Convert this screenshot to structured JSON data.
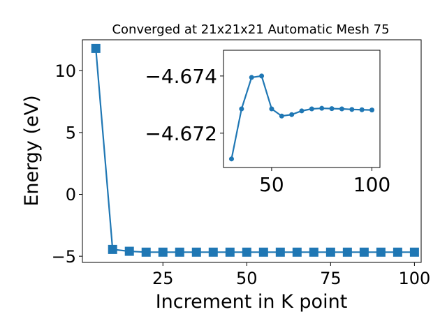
{
  "chart_data": [
    {
      "type": "line",
      "title": "Converged at 21x21x21 Automatic Mesh 75",
      "xlabel": "Increment in K point",
      "ylabel": "Energy (eV)",
      "xlim": [
        1,
        102
      ],
      "ylim": [
        -5.5,
        12.5
      ],
      "xticks": [
        25,
        50,
        75,
        100
      ],
      "yticks": [
        -5,
        0,
        5,
        10
      ],
      "grid": false,
      "marker": "square",
      "color": "#1f77b4",
      "series": [
        {
          "x": [
            5,
            10,
            15,
            20,
            25,
            30,
            35,
            40,
            45,
            50,
            55,
            60,
            65,
            70,
            75,
            80,
            85,
            90,
            95,
            100
          ],
          "y": [
            11.8,
            -4.45,
            -4.6,
            -4.67,
            -4.67,
            -4.67,
            -4.67,
            -4.67,
            -4.67,
            -4.67,
            -4.67,
            -4.67,
            -4.67,
            -4.67,
            -4.67,
            -4.67,
            -4.67,
            -4.67,
            -4.67,
            -4.67
          ]
        }
      ]
    },
    {
      "type": "line",
      "title": "",
      "xlabel": "",
      "ylabel": "",
      "xlim": [
        26,
        104
      ],
      "ylim": [
        -4.6708,
        -4.6749
      ],
      "xticks": [
        50,
        100
      ],
      "yticks": [
        -4.674,
        -4.672
      ],
      "ytick_labels": [
        "−4.674",
        "−4.672"
      ],
      "inverted_y": true,
      "grid": false,
      "marker": "circle",
      "color": "#1f77b4",
      "series": [
        {
          "x": [
            30,
            35,
            40,
            45,
            50,
            55,
            60,
            65,
            70,
            75,
            80,
            85,
            90,
            95,
            100
          ],
          "y": [
            -4.6711,
            -4.67285,
            -4.67395,
            -4.674,
            -4.67285,
            -4.6726,
            -4.67265,
            -4.67278,
            -4.67285,
            -4.67287,
            -4.67286,
            -4.67285,
            -4.67283,
            -4.67282,
            -4.67281
          ]
        }
      ]
    }
  ]
}
